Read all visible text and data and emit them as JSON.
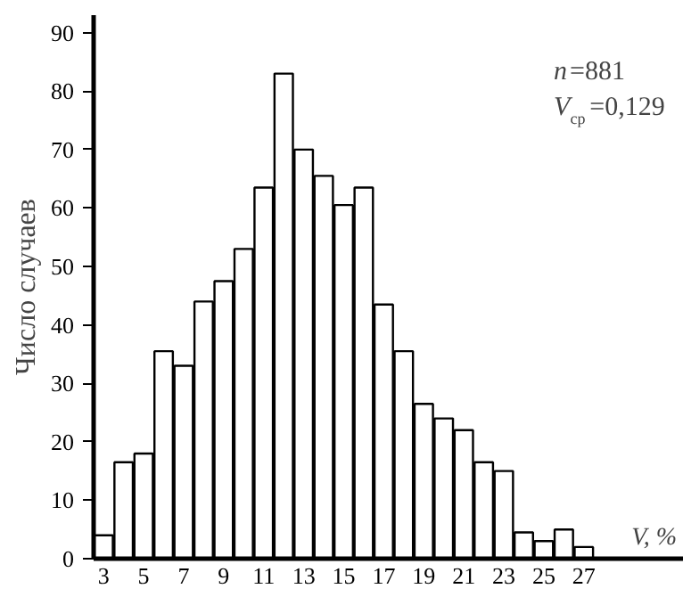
{
  "chart_data": {
    "type": "histogram",
    "bins": [
      2.5,
      3.5,
      4.5,
      5.5,
      6.5,
      7.5,
      8.5,
      9.5,
      10.5,
      11.5,
      12.5,
      13.5,
      14.5,
      15.5,
      16.5,
      17.5,
      18.5,
      19.5,
      20.5,
      21.5,
      22.5,
      23.5,
      24.5,
      25.5,
      26.5,
      27.5
    ],
    "values": [
      4,
      16.5,
      18,
      35.5,
      33,
      44,
      47.5,
      53,
      63.5,
      83,
      70,
      65.5,
      60.5,
      63.5,
      43.5,
      35.5,
      26.5,
      24,
      22,
      16.5,
      15,
      4.5,
      3,
      5,
      2
    ],
    "color": "#ffffff",
    "xlabel": "V, %",
    "ylabel": "Число случаев",
    "annotations": [
      "n=881",
      "V$_{ср}$=0,129"
    ],
    "xlim": [
      2.5,
      32
    ],
    "ylim": [
      0,
      93
    ],
    "xticks": [
      3,
      5,
      7,
      9,
      11,
      13,
      15,
      17,
      19,
      21,
      23,
      25,
      27
    ],
    "yticks": [
      0,
      10,
      20,
      30,
      40,
      50,
      60,
      70,
      80,
      90
    ],
    "grid": false
  }
}
